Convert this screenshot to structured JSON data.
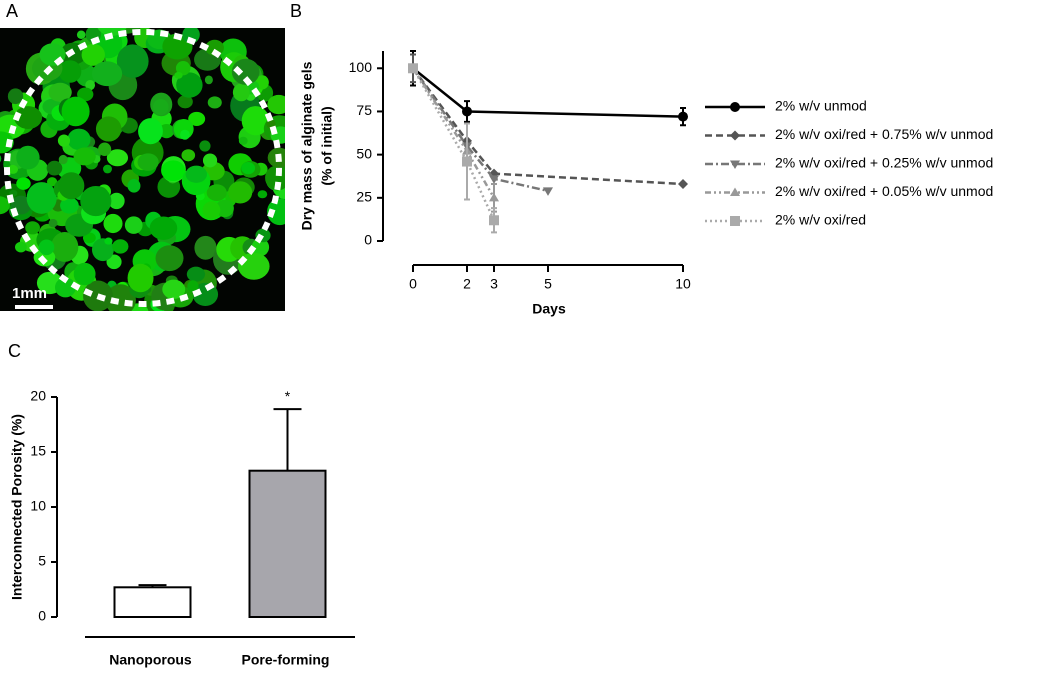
{
  "panels": [
    "A",
    "B",
    "C"
  ],
  "scale_bar": "1mm",
  "chart_data": [
    {
      "type": "line",
      "xlabel": "Days",
      "ylabel": [
        "Dry mass of alginate gels",
        "(% of initial)"
      ],
      "xlim": [
        0,
        10
      ],
      "xticks": [
        0,
        2,
        3,
        5,
        10
      ],
      "ylim": [
        0,
        110
      ],
      "yticks": [
        0,
        25,
        50,
        75,
        100
      ],
      "series": [
        {
          "name": "2% w/v unmod",
          "color": "#000000",
          "marker": "circle",
          "dash": "none",
          "x": [
            0,
            2,
            10
          ],
          "values": [
            100,
            75,
            72
          ],
          "errors": [
            10,
            6,
            5
          ]
        },
        {
          "name": "2% w/v oxi/red + 0.75% w/v unmod",
          "color": "#555555",
          "marker": "diamond",
          "dash": "7,4",
          "x": [
            0,
            2,
            3,
            10
          ],
          "values": [
            100,
            58,
            39,
            33
          ],
          "errors": [
            8,
            null,
            null,
            null
          ]
        },
        {
          "name": "2% w/v oxi/red + 0.25% w/v unmod",
          "color": "#777777",
          "marker": "tri-down",
          "dash": "8,3,2,3",
          "x": [
            0,
            2,
            3,
            5
          ],
          "values": [
            100,
            55,
            36,
            29
          ],
          "errors": [
            null,
            null,
            null,
            null
          ]
        },
        {
          "name": "2% w/v oxi/red + 0.05% w/v unmod",
          "color": "#999999",
          "marker": "tri-up",
          "dash": "6,3,2,3,2,3",
          "x": [
            0,
            2,
            3
          ],
          "values": [
            100,
            52,
            25
          ],
          "errors": [
            null,
            null,
            8
          ]
        },
        {
          "name": "2% w/v oxi/red",
          "color": "#aaaaaa",
          "marker": "square",
          "dash": "2,3",
          "x": [
            0,
            2,
            3
          ],
          "values": [
            100,
            46,
            12
          ],
          "errors": [
            null,
            22,
            7
          ]
        }
      ]
    },
    {
      "type": "bar",
      "ylabel": "Interconnected Porosity (%)",
      "categories": [
        "Nanoporous",
        "Pore-forming"
      ],
      "values": [
        2.7,
        13.3
      ],
      "errors": [
        0.2,
        5.6
      ],
      "colors": [
        "#ffffff",
        "#a7a6ac"
      ],
      "ylim": [
        0,
        20
      ],
      "yticks": [
        0,
        5,
        10,
        15,
        20
      ],
      "annotation": "*"
    }
  ]
}
